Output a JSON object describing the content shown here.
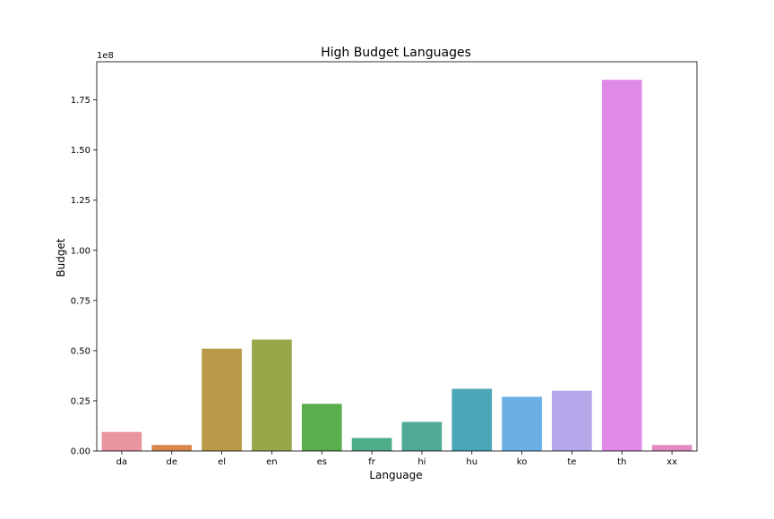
{
  "chart_data": {
    "type": "bar",
    "title": "High Budget Languages",
    "xlabel": "Language",
    "ylabel": "Budget",
    "y_scale_label": "1e8",
    "ylim": [
      0,
      194000000
    ],
    "y_ticks": [
      0,
      25000000,
      50000000,
      75000000,
      100000000,
      125000000,
      150000000,
      175000000
    ],
    "y_tick_labels": [
      "0.00",
      "0.25",
      "0.50",
      "0.75",
      "1.00",
      "1.25",
      "1.50",
      "1.75"
    ],
    "grid": false,
    "legend": "none",
    "categories": [
      "da",
      "de",
      "el",
      "en",
      "es",
      "fr",
      "hi",
      "hu",
      "ko",
      "te",
      "th",
      "xx"
    ],
    "values": [
      9500000,
      3000000,
      51000000,
      55500000,
      23500000,
      6500000,
      14500000,
      31000000,
      27000000,
      30000000,
      185000000,
      3000000
    ],
    "colors": [
      "#e8959f",
      "#d8874a",
      "#b89a48",
      "#9aa64a",
      "#5bae4d",
      "#4ead86",
      "#50aa95",
      "#4ba7b7",
      "#6aaee4",
      "#b7a6ea",
      "#df8ae7",
      "#e38ac3"
    ]
  }
}
